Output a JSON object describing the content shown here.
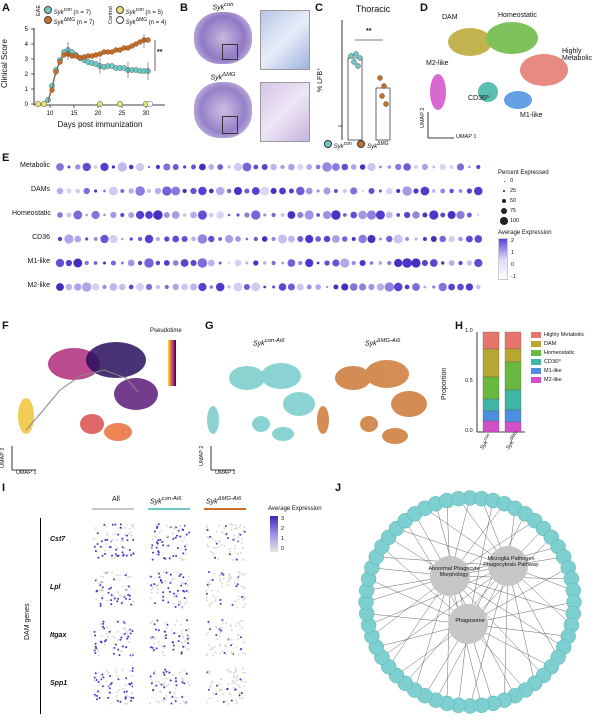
{
  "panels": {
    "A": "A",
    "B": "B",
    "C": "C",
    "D": "D",
    "E": "E",
    "F": "F",
    "G": "G",
    "H": "H",
    "I": "I",
    "J": "J"
  },
  "colors": {
    "teal": "#6fc9c7",
    "orange": "#c8702a",
    "yellow": "#e8e07a",
    "purple": "#5a3fd8",
    "grey": "#c8c8c8",
    "node": "#7ecfcf"
  },
  "panelA": {
    "ylabel": "Clinical Score",
    "xlabel": "Days post immunization",
    "group_eae": "EAE",
    "group_control": "Control",
    "legend": [
      {
        "label": "Syk",
        "sup": "con",
        "n": "(n = 7)"
      },
      {
        "label": "Syk",
        "sup": "ΔMG",
        "n": "(n = 7)"
      },
      {
        "label": "Syk",
        "sup": "con",
        "n": "(n = 5)"
      },
      {
        "label": "Syk",
        "sup": "ΔMG",
        "n": "(n = 4)"
      }
    ],
    "sig": "**",
    "yticks": [
      "0",
      "1",
      "2",
      "3",
      "4",
      "5"
    ],
    "xticks": [
      "10",
      "15",
      "20",
      "25",
      "30"
    ]
  },
  "panelB": {
    "label_con": "Syk",
    "sup_con": "con",
    "label_dmg": "Syk",
    "sup_dmg": "ΔMG"
  },
  "panelC": {
    "title": "Thoracic",
    "ylabel": "% LFB⁺",
    "sig": "**",
    "legend_con": "Syk",
    "legend_con_sup": "con",
    "legend_dmg": "Syk",
    "legend_dmg_sup": "ΔMG"
  },
  "panelD": {
    "clusters": [
      "DAM",
      "Homeostatic",
      "Highly Metabolic",
      "M2-like",
      "CD36ʰⁱ",
      "M1-like"
    ],
    "xlabel": "UMAP 1",
    "ylabel": "UMAP 2"
  },
  "panelE": {
    "rows": [
      "Metabolic",
      "DAMs",
      "Homeostatic",
      "CD36",
      "M1-like",
      "M2-like"
    ],
    "legend_pct_title": "Percent Expressed",
    "pct_values": [
      "0",
      "25",
      "50",
      "75",
      "100"
    ],
    "legend_expr_title": "Average Expression",
    "expr_values": [
      "2",
      "1",
      "0",
      "-1"
    ]
  },
  "panelF": {
    "legend_title": "Pseudotime",
    "xlabel": "UMAP 1",
    "ylabel": "UMAP 2"
  },
  "panelG": {
    "label_con": "Syk",
    "sup_con": "con-Ai6",
    "label_dmg": "Syk",
    "sup_dmg": "ΔMG-Ai6",
    "xlabel": "UMAP 1",
    "ylabel": "UMAP 2"
  },
  "panelH": {
    "ylabel": "Proportion",
    "yticks": [
      "0.0",
      "0.5",
      "1.0"
    ],
    "xlabels": [
      {
        "label": "Syk",
        "sup": "con"
      },
      {
        "label": "Syk",
        "sup": "ΔMG"
      }
    ],
    "legend": [
      {
        "label": "Highly Metabolic",
        "color": "#e6766d"
      },
      {
        "label": "DAM",
        "color": "#b8a632"
      },
      {
        "label": "Homeostatic",
        "color": "#69b83f"
      },
      {
        "label": "CD36ʰⁱ",
        "color": "#3fb5a5"
      },
      {
        "label": "M1-like",
        "color": "#4c8fe0"
      },
      {
        "label": "M2-like",
        "color": "#d24fc8"
      }
    ],
    "stacks": [
      [
        0.17,
        0.28,
        0.22,
        0.12,
        0.1,
        0.11
      ],
      [
        0.17,
        0.13,
        0.28,
        0.2,
        0.12,
        0.1
      ]
    ]
  },
  "panelI": {
    "col_all": "All",
    "col_con": "Syk",
    "col_con_sup": "con-Ai6",
    "col_dmg": "Syk",
    "col_dmg_sup": "ΔMG-Ai6",
    "group_label": "DAM genes",
    "genes": [
      "Cst7",
      "Lpl",
      "Itgax",
      "Spp1"
    ],
    "legend_title": "Average Expression",
    "legend_values": [
      "3",
      "2",
      "1",
      "0"
    ]
  },
  "panelJ": {
    "hubs": [
      "Abnormal Phagocyte Morphology",
      "Microglia Pathogen Phagocytosis Pathway",
      "Phagosome"
    ]
  }
}
